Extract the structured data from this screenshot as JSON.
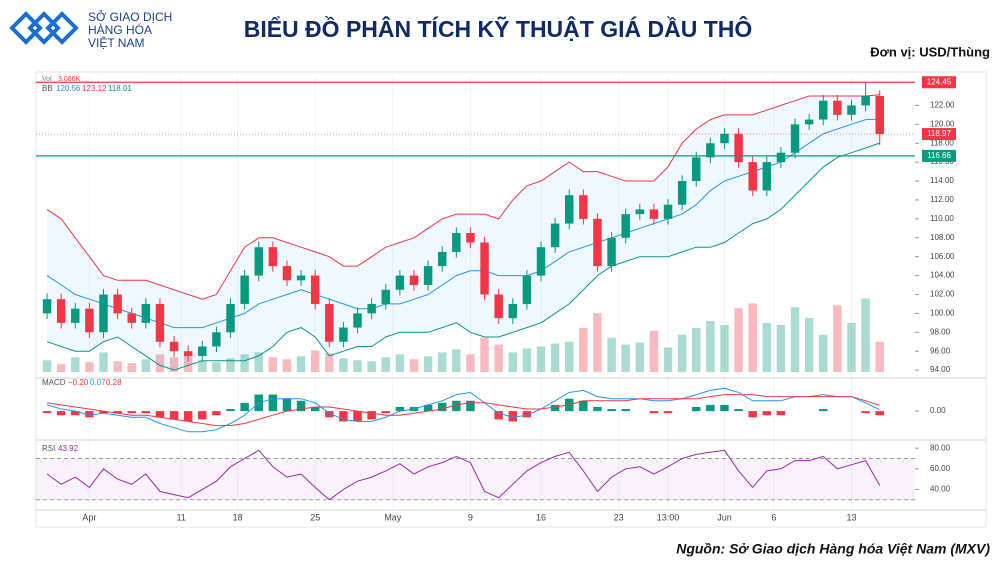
{
  "header": {
    "org": [
      "SỞ GIAO DỊCH",
      "HÀNG HÓA",
      "VIỆT NAM"
    ],
    "title": "BIỂU ĐỒ PHÂN TÍCH KỸ THUẬT GIÁ DẦU THÔ",
    "unit": "Đơn vị: USD/Thùng",
    "source": "Nguồn: Sở Giao dịch Hàng hóa Việt Nam (MXV)"
  },
  "chart_data": [
    {
      "type": "candlestick",
      "xlim": [
        -0.5,
        61.5
      ],
      "xticks": [
        {
          "value": 3,
          "label": "Apr"
        },
        {
          "value": 9.5,
          "label": "11"
        },
        {
          "value": 13.5,
          "label": "18"
        },
        {
          "value": 19,
          "label": "25"
        },
        {
          "value": 24.5,
          "label": "May"
        },
        {
          "value": 30,
          "label": "9"
        },
        {
          "value": 35,
          "label": "16"
        },
        {
          "value": 40.5,
          "label": "23"
        },
        {
          "value": 44,
          "label": "13:00"
        },
        {
          "value": 48,
          "label": "Jun"
        },
        {
          "value": 51.5,
          "label": "6"
        },
        {
          "value": 57,
          "label": "13"
        }
      ],
      "ylim": [
        93.8,
        124.9
      ],
      "yticks": [
        {
          "value": 94,
          "label": "94.00"
        },
        {
          "value": 96,
          "label": "96.00"
        },
        {
          "value": 98,
          "label": "98.00"
        },
        {
          "value": 100,
          "label": "100.00"
        },
        {
          "value": 102,
          "label": "102.00"
        },
        {
          "value": 104,
          "label": "104.00"
        },
        {
          "value": 106,
          "label": "106.00"
        },
        {
          "value": 108,
          "label": "108.00"
        },
        {
          "value": 110,
          "label": "110.00"
        },
        {
          "value": 112,
          "label": "112.00"
        },
        {
          "value": 114,
          "label": "114.00"
        },
        {
          "value": 116,
          "label": "116.00"
        },
        {
          "value": 118,
          "label": "118.00"
        },
        {
          "value": 120,
          "label": "120.00"
        },
        {
          "value": 122,
          "label": "122.00"
        }
      ],
      "up_color": "#089981",
      "down_color": "#f23645",
      "open": [
        100,
        101.5,
        99,
        100.5,
        98,
        102,
        100,
        99,
        101,
        97,
        96,
        95.5,
        96.5,
        98,
        101,
        104,
        107,
        105,
        103.5,
        104,
        101,
        97,
        98.5,
        100,
        101,
        102.5,
        104,
        103,
        105,
        106.5,
        108.5,
        107.5,
        102,
        99.5,
        101,
        104,
        107,
        109.5,
        112.5,
        110,
        105,
        108,
        110.5,
        111,
        110,
        111.5,
        114,
        116.5,
        118,
        119,
        116,
        113,
        116,
        117,
        120,
        120.5,
        122.5,
        121,
        122,
        123
      ],
      "high": [
        102.1,
        102.1,
        101.1,
        101.1,
        102.6,
        102.6,
        100.6,
        101.6,
        101.6,
        97.6,
        96.6,
        97.1,
        98.6,
        101.6,
        104.6,
        107.6,
        107.6,
        105.6,
        104.6,
        104.6,
        101.6,
        99.1,
        100.6,
        101.6,
        103.1,
        104.6,
        104.6,
        105.6,
        107.1,
        109.1,
        109.1,
        108.1,
        102.6,
        101.6,
        104.6,
        107.6,
        110.1,
        113.1,
        113.1,
        110.6,
        108.6,
        111.1,
        111.6,
        111.6,
        112.1,
        114.6,
        117.1,
        118.6,
        119.6,
        119.6,
        116.6,
        116.6,
        117.6,
        120.6,
        121.1,
        123.1,
        123.1,
        122.6,
        124.45,
        123.6
      ],
      "low": [
        99.4,
        98.4,
        98.4,
        97.4,
        97.4,
        99.4,
        98.4,
        98.4,
        96.4,
        95.4,
        94.9,
        94.9,
        95.9,
        97.4,
        100.4,
        103.4,
        104.4,
        102.9,
        102.9,
        100.4,
        96.4,
        96.4,
        97.9,
        99.4,
        100.4,
        101.9,
        102.4,
        102.4,
        104.4,
        105.9,
        106.9,
        101.4,
        98.9,
        98.9,
        100.4,
        103.4,
        106.4,
        108.9,
        109.4,
        104.4,
        104.4,
        107.4,
        109.9,
        109.4,
        109.4,
        110.9,
        113.4,
        115.9,
        117.4,
        115.4,
        112.4,
        112.4,
        115.4,
        116.4,
        119.4,
        119.9,
        120.4,
        120.4,
        121.4,
        117.8
      ],
      "close": [
        101.5,
        99,
        100.5,
        98,
        102,
        100,
        99,
        101,
        97,
        96,
        95.5,
        96.5,
        98,
        101,
        104,
        107,
        105,
        103.5,
        104,
        101,
        97,
        98.5,
        100,
        101,
        102.5,
        104,
        103,
        105,
        106.5,
        108.5,
        107.5,
        102,
        99.5,
        101,
        104,
        107,
        109.5,
        112.5,
        110,
        105,
        108,
        110.5,
        111,
        110,
        111.5,
        114,
        116.5,
        118,
        119,
        116,
        113,
        116,
        117,
        120,
        120.5,
        122.5,
        121,
        122,
        123,
        118.97
      ],
      "bb": {
        "name": "BB",
        "middle_color": "#2196f3",
        "upper_color": "#f23645",
        "lower_color": "#089981",
        "middle": [
          104,
          103,
          102,
          101.5,
          101,
          100.5,
          100,
          99.5,
          99,
          98.5,
          98.5,
          98.5,
          99,
          99.5,
          100,
          101,
          101.5,
          102,
          102.5,
          102,
          101.5,
          101,
          100.5,
          100.5,
          101,
          101,
          101.5,
          102,
          103,
          104,
          104.5,
          104.5,
          104,
          104,
          104,
          104.5,
          105.5,
          106.5,
          107,
          107.5,
          108,
          108.5,
          109,
          109.5,
          110,
          110.5,
          111.5,
          113,
          114,
          114.5,
          115,
          115.5,
          116,
          117,
          118,
          119,
          119.5,
          120,
          120.5,
          120.56
        ],
        "upper": [
          111,
          110,
          108,
          106,
          104,
          103.5,
          103.5,
          103.5,
          103,
          102.5,
          102,
          101.5,
          102,
          104.5,
          107,
          108,
          108,
          107.5,
          107,
          106.5,
          106,
          105,
          105,
          106,
          107,
          107.5,
          108,
          109,
          110,
          110.5,
          110.5,
          110.5,
          110,
          112,
          113.5,
          114,
          115,
          116,
          115,
          115,
          114.5,
          114,
          114,
          114,
          115.5,
          118,
          119.5,
          120.5,
          121,
          121,
          121,
          121.5,
          122,
          122.5,
          123,
          123,
          123,
          123,
          123,
          123.12
        ],
        "lower": [
          97,
          96.5,
          96,
          96,
          97,
          97.5,
          96.5,
          95.5,
          94.5,
          94,
          94.5,
          95,
          95,
          95,
          95,
          95.5,
          96.5,
          98,
          98.5,
          97.5,
          95.5,
          96,
          96.5,
          96.5,
          97.5,
          98,
          98,
          98,
          98.5,
          99,
          98,
          97.5,
          97.5,
          98,
          98.5,
          99,
          100,
          101,
          102.5,
          104,
          105,
          105.5,
          106,
          106,
          106,
          106.5,
          107,
          107,
          107.5,
          108.5,
          109.5,
          110,
          111,
          112.5,
          114,
          115.5,
          116.5,
          117,
          117.5,
          118.01
        ]
      },
      "volume_name": "Vol",
      "vlim": [
        0,
        30
      ],
      "volume": [
        1.2,
        0.8,
        1.5,
        1,
        2,
        1.1,
        0.9,
        1.3,
        1.8,
        1.5,
        2,
        1.2,
        1,
        1.4,
        1.8,
        2,
        1.5,
        1.3,
        1.6,
        2.2,
        1.9,
        1.4,
        1.2,
        1.1,
        1.5,
        1.8,
        1.3,
        1.6,
        2,
        2.3,
        1.8,
        3.5,
        2.8,
        2,
        2.4,
        2.6,
        2.9,
        3.1,
        4.5,
        6,
        3.5,
        2.8,
        3,
        4.2,
        2.5,
        3.8,
        4.5,
        5.2,
        4.8,
        6.5,
        7,
        5,
        4.8,
        6.6,
        5.5,
        3.8,
        6.8,
        5,
        7.5,
        3.086
      ],
      "volume_last_label": "3.086K",
      "price_lines": [
        {
          "value": 124.45,
          "color": "#f23645"
        },
        {
          "value": 116.66,
          "color": "#089981"
        }
      ]
    },
    {
      "type": "macd",
      "name": "MACD",
      "ylim": [
        -1.3,
        1.6
      ],
      "yticks": [
        {
          "value": 0,
          "label": "0.00"
        }
      ],
      "macd_color": "#2196f3",
      "signal_color": "#f23645",
      "hist_up_color": "#089981",
      "hist_down_color": "#f23645",
      "hist": [
        -0.1,
        -0.2,
        -0.2,
        -0.3,
        -0.1,
        -0.1,
        -0.1,
        -0.1,
        -0.3,
        -0.4,
        -0.5,
        -0.4,
        -0.2,
        0.1,
        0.4,
        0.8,
        0.8,
        0.6,
        0.5,
        0.2,
        -0.3,
        -0.5,
        -0.5,
        -0.4,
        -0.1,
        0.2,
        0.2,
        0.3,
        0.4,
        0.5,
        0.5,
        0,
        -0.4,
        -0.5,
        -0.3,
        0,
        0.3,
        0.6,
        0.5,
        0.2,
        0.1,
        0.1,
        0,
        -0.1,
        -0.1,
        0,
        0.2,
        0.3,
        0.3,
        0.1,
        -0.3,
        -0.2,
        -0.2,
        0,
        0,
        0.1,
        0,
        0,
        -0.1,
        -0.2
      ],
      "hist_last_label": "−0.20",
      "macd": [
        0.3,
        0.1,
        0,
        -0.2,
        -0.1,
        -0.2,
        -0.3,
        -0.3,
        -0.6,
        -0.8,
        -1,
        -1,
        -0.9,
        -0.6,
        -0.2,
        0.4,
        0.6,
        0.6,
        0.6,
        0.4,
        -0.1,
        -0.4,
        -0.5,
        -0.5,
        -0.3,
        0,
        0.1,
        0.3,
        0.5,
        0.8,
        0.9,
        0.4,
        -0.1,
        -0.3,
        -0.2,
        0.1,
        0.5,
        0.9,
        1,
        0.7,
        0.6,
        0.6,
        0.6,
        0.5,
        0.5,
        0.6,
        0.8,
        1,
        1.1,
        0.9,
        0.5,
        0.5,
        0.5,
        0.7,
        0.7,
        0.8,
        0.7,
        0.7,
        0.4,
        0.07
      ],
      "signal": [
        0.4,
        0.3,
        0.2,
        0.1,
        0,
        -0.1,
        -0.2,
        -0.2,
        -0.3,
        -0.4,
        -0.5,
        -0.6,
        -0.7,
        -0.7,
        -0.6,
        -0.4,
        -0.2,
        0,
        0.1,
        0.2,
        0.2,
        0.1,
        0,
        -0.1,
        -0.2,
        -0.2,
        -0.1,
        0,
        0.1,
        0.3,
        0.4,
        0.4,
        0.3,
        0.2,
        0.1,
        0.1,
        0.2,
        0.3,
        0.5,
        0.5,
        0.5,
        0.5,
        0.6,
        0.6,
        0.6,
        0.6,
        0.6,
        0.7,
        0.8,
        0.8,
        0.8,
        0.7,
        0.7,
        0.7,
        0.7,
        0.7,
        0.7,
        0.7,
        0.5,
        0.28
      ]
    },
    {
      "type": "line",
      "name": "RSI",
      "ylim": [
        22,
        86
      ],
      "yticks": [
        {
          "value": 40,
          "label": "40.00"
        },
        {
          "value": 60,
          "label": "60.00"
        },
        {
          "value": 80,
          "label": "80.00"
        }
      ],
      "band": [
        30,
        70
      ],
      "color": "#9c27b0",
      "values": [
        55,
        45,
        52,
        42,
        60,
        50,
        45,
        55,
        38,
        35,
        32,
        40,
        48,
        62,
        70,
        78,
        62,
        52,
        55,
        42,
        30,
        40,
        48,
        52,
        58,
        65,
        55,
        62,
        66,
        72,
        66,
        38,
        32,
        45,
        58,
        66,
        72,
        76,
        58,
        38,
        52,
        60,
        62,
        55,
        62,
        70,
        74,
        76,
        78,
        58,
        42,
        58,
        60,
        68,
        68,
        72,
        60,
        64,
        68,
        43.92
      ]
    }
  ]
}
